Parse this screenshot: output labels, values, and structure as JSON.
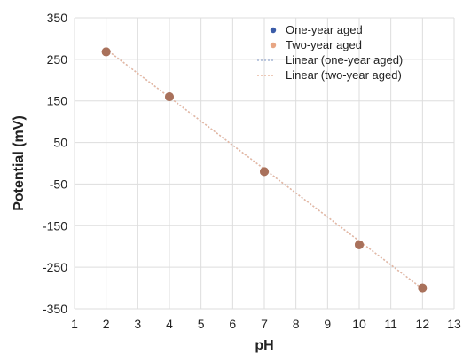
{
  "chart_data": {
    "type": "scatter",
    "title": "",
    "xlabel": "pH",
    "ylabel": "Potential (mV)",
    "xlim": [
      1,
      13
    ],
    "ylim": [
      -350,
      350
    ],
    "x_ticks": [
      1,
      2,
      3,
      4,
      5,
      6,
      7,
      8,
      9,
      10,
      11,
      12,
      13
    ],
    "y_ticks": [
      -350,
      -250,
      -150,
      -50,
      50,
      150,
      250,
      350
    ],
    "grid": true,
    "legend_position": "top-right",
    "series": [
      {
        "name": "One-year aged",
        "kind": "points",
        "color": "#3b5ca8",
        "x": [
          2,
          4,
          7,
          10,
          12
        ],
        "y": [
          268,
          160,
          -20,
          -196,
          -300
        ]
      },
      {
        "name": "Two-year aged",
        "kind": "points",
        "color": "#e8a684",
        "x": [
          2,
          4,
          7,
          10,
          12
        ],
        "y": [
          268,
          160,
          -20,
          -196,
          -300
        ]
      },
      {
        "name": "Linear (one-year aged)",
        "kind": "trendline",
        "color": "#a9b8d6",
        "x": [
          2,
          12
        ],
        "y": [
          274,
          -302
        ]
      },
      {
        "name": "Linear (two-year aged)",
        "kind": "trendline",
        "color": "#e8b8a0",
        "x": [
          2,
          12
        ],
        "y": [
          274,
          -302
        ]
      }
    ],
    "visible_marker_color": "#a8705a"
  }
}
